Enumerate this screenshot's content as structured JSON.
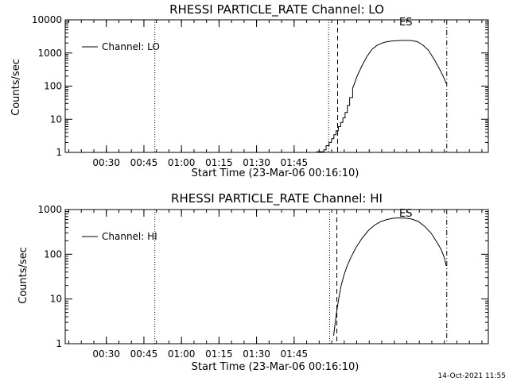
{
  "chart_data": [
    {
      "type": "line",
      "title": "RHESSI PARTICLE_RATE Channel: LO",
      "xlabel": "Start Time (23-Mar-06 00:16:10)",
      "ylabel": "Counts/sec",
      "yscale": "log",
      "ylim": [
        1,
        10000
      ],
      "y_ticks": [
        "1",
        "10",
        "100",
        "1000",
        "10000"
      ],
      "x_ticks": [
        "00:30",
        "00:45",
        "01:00",
        "01:15",
        "01:30",
        "01:45"
      ],
      "legend": "top-left",
      "marker_label": "ES",
      "series": [
        {
          "name": "Channel: LO",
          "x_min": [
            97.8,
            100.7,
            101.6,
            102.8,
            103.8,
            104.7,
            105.6,
            106.5,
            107.4,
            108.3,
            109.2,
            110.1,
            111.0,
            112.2,
            114.0,
            116.0,
            118.0,
            120.0,
            122.0,
            124.0,
            126.0,
            128.0,
            130.0,
            132.0,
            134.0,
            136.0,
            138.0,
            140.0,
            142.5,
            145.0,
            147.2,
            148.6,
            149.6
          ],
          "y": [
            1.05,
            1.2,
            1.6,
            2.0,
            2.6,
            3.4,
            4.5,
            6,
            8,
            11,
            16,
            26,
            45,
            85,
            200,
            420,
            800,
            1300,
            1700,
            2000,
            2200,
            2300,
            2350,
            2400,
            2400,
            2350,
            2200,
            1800,
            1200,
            600,
            300,
            180,
            120
          ]
        }
      ],
      "vlines_min": [
        {
          "x": 33.2,
          "style": "dotted"
        },
        {
          "x": 102.6,
          "style": "dotted"
        },
        {
          "x": 106.2,
          "style": "dashed"
        },
        {
          "x": 149.8,
          "style": "dashdot"
        }
      ]
    },
    {
      "type": "line",
      "title": "RHESSI PARTICLE_RATE Channel: HI",
      "xlabel": "Start Time (23-Mar-06 00:16:10)",
      "ylabel": "Counts/sec",
      "yscale": "log",
      "ylim": [
        1,
        1000
      ],
      "y_ticks": [
        "1",
        "10",
        "100",
        "1000"
      ],
      "x_ticks": [
        "00:30",
        "00:45",
        "01:00",
        "01:15",
        "01:30",
        "01:45"
      ],
      "legend": "top-left",
      "marker_label": "ES",
      "series": [
        {
          "name": "Channel: HI",
          "x_min": [
            104.6,
            105.1,
            105.8,
            106.6,
            107.6,
            108.8,
            110.0,
            111.5,
            113.5,
            116.0,
            118.5,
            121.0,
            123.5,
            126.0,
            128.5,
            131.0,
            133.5,
            136.0,
            138.5,
            141.0,
            143.5,
            145.5,
            147.5,
            148.8,
            149.6
          ],
          "y": [
            1.5,
            2.5,
            5,
            10,
            20,
            35,
            55,
            85,
            140,
            230,
            340,
            450,
            540,
            600,
            640,
            650,
            640,
            610,
            540,
            420,
            300,
            200,
            130,
            85,
            55
          ]
        }
      ],
      "vlines_min": [
        {
          "x": 33.2,
          "style": "dotted"
        },
        {
          "x": 103.0,
          "style": "dotted"
        },
        {
          "x": 105.9,
          "style": "dashed"
        },
        {
          "x": 149.8,
          "style": "dashdot"
        }
      ]
    }
  ],
  "footer": {
    "date": "14-Oct-2021 11:55"
  }
}
